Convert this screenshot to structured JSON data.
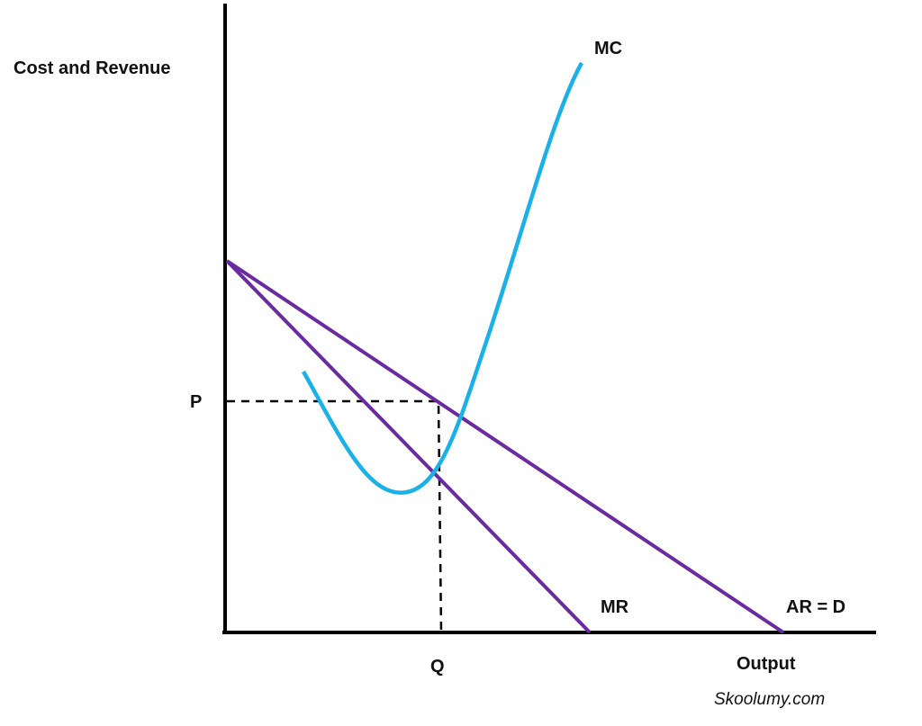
{
  "axes": {
    "y_label": "Cost and Revenue",
    "x_label": "Output",
    "price": "P",
    "quantity": "Q"
  },
  "curves": {
    "mc": "MC",
    "mr": "MR",
    "ar": "AR = D"
  },
  "credit": "Skoolumy.com"
}
